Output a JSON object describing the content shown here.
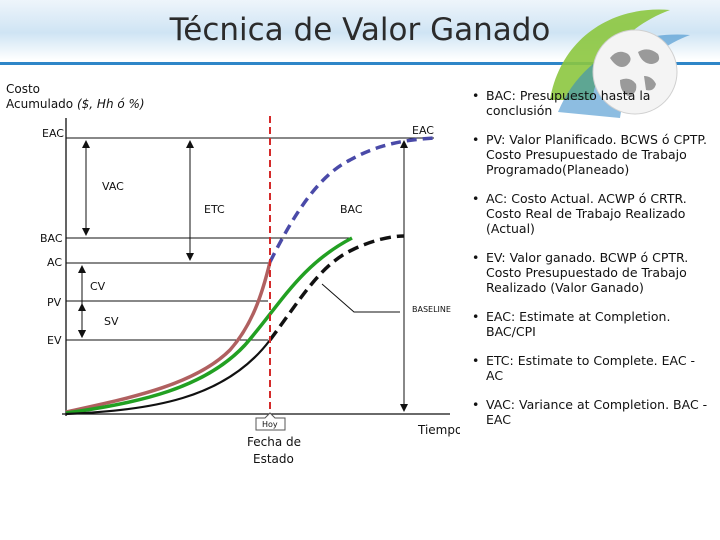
{
  "title": "Técnica de Valor Ganado",
  "diagram": {
    "y_axis_label_line1": "Costo",
    "y_axis_label_line2": "Acumulado",
    "y_axis_label_units": " ($, Hh ó %)",
    "eac_left": "EAC",
    "eac_right": "EAC",
    "vac": "VAC",
    "etc": "ETC",
    "bac_center": "BAC",
    "bac_left": "BAC",
    "ac": "AC",
    "cv": "CV",
    "pv": "PV",
    "sv": "SV",
    "ev": "EV",
    "baseline": "BASELINE",
    "hoy": "Hoy",
    "status_date_line1": "Fecha de",
    "status_date_line2": "Estado",
    "time_axis_label": "Tiempo"
  },
  "colors": {
    "accent": "#2f86c8",
    "ac_curve": "#b06060",
    "ev_curve": "#22a022",
    "eac_curve": "#4a4aa8",
    "status_line": "#d42a2a"
  },
  "bullets": [
    "BAC: Presupuesto hasta la\nconclusión",
    "PV: Valor Planificado. BCWS ó CPTP.\nCosto Presupuestado de Trabajo\nProgramado(Planeado)",
    "AC: Costo Actual. ACWP ó CRTR.\nCosto Real de Trabajo Realizado\n(Actual)",
    "EV: Valor ganado. BCWP ó CPTR.\nCosto Presupuestado de Trabajo\nRealizado (Valor Ganado)",
    "EAC: Estimate at Completion.\nBAC/CPI",
    "ETC: Estimate to Complete. EAC -\nAC",
    "VAC: Variance at Completion. BAC -\nEAC"
  ]
}
